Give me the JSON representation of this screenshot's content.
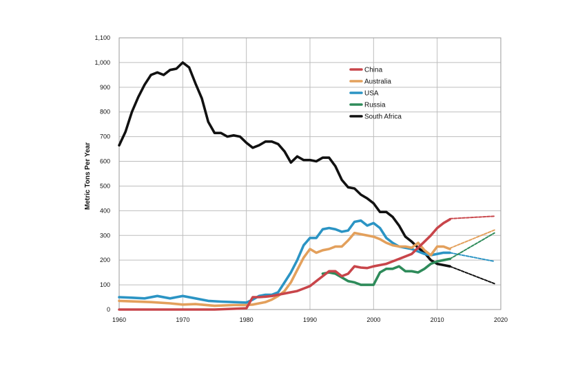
{
  "chart_data": {
    "type": "line",
    "title": "",
    "xlabel": "",
    "ylabel": "Metric Tons Per Year",
    "xlim": [
      1960,
      2020
    ],
    "ylim": [
      0,
      1100
    ],
    "x_ticks": [
      1960,
      1970,
      1980,
      1990,
      2000,
      2010,
      2020
    ],
    "y_ticks": [
      0,
      100,
      200,
      300,
      400,
      500,
      600,
      700,
      800,
      900,
      1000,
      1100
    ],
    "y_tick_labels": [
      "0",
      "100",
      "200",
      "300",
      "400",
      "500",
      "600",
      "700",
      "800",
      "900",
      "1,000",
      "1,100"
    ],
    "grid": "vertical and horizontal",
    "legend_position": "top-right",
    "series": [
      {
        "name": "China",
        "color": "#c8454a",
        "x": [
          1960,
          1965,
          1970,
          1975,
          1980,
          1981,
          1982,
          1983,
          1984,
          1985,
          1986,
          1987,
          1988,
          1989,
          1990,
          1991,
          1992,
          1993,
          1994,
          1995,
          1996,
          1997,
          1998,
          1999,
          2000,
          2001,
          2002,
          2003,
          2004,
          2005,
          2006,
          2007,
          2008,
          2009,
          2010,
          2011,
          2012
        ],
        "y": [
          0,
          0,
          0,
          0,
          5,
          50,
          50,
          52,
          55,
          60,
          65,
          70,
          75,
          85,
          95,
          115,
          135,
          155,
          155,
          135,
          145,
          175,
          170,
          168,
          175,
          180,
          185,
          195,
          205,
          215,
          225,
          250,
          275,
          300,
          330,
          350,
          365
        ],
        "projection": {
          "x": [
            2012,
            2019
          ],
          "y": [
            368,
            378
          ]
        }
      },
      {
        "name": "Australia",
        "color": "#e3a05c",
        "x": [
          1960,
          1965,
          1968,
          1970,
          1972,
          1975,
          1978,
          1980,
          1981,
          1982,
          1983,
          1984,
          1985,
          1986,
          1987,
          1988,
          1989,
          1990,
          1991,
          1992,
          1993,
          1994,
          1995,
          1996,
          1997,
          1998,
          1999,
          2000,
          2001,
          2002,
          2003,
          2004,
          2005,
          2006,
          2007,
          2008,
          2009,
          2010,
          2011,
          2012
        ],
        "y": [
          35,
          30,
          25,
          20,
          22,
          15,
          18,
          18,
          20,
          25,
          30,
          40,
          55,
          75,
          110,
          160,
          210,
          245,
          230,
          240,
          245,
          255,
          255,
          280,
          310,
          305,
          300,
          295,
          285,
          270,
          260,
          255,
          255,
          250,
          270,
          240,
          220,
          255,
          255,
          245
        ],
        "projection": {
          "x": [
            2012,
            2019
          ],
          "y": [
            248,
            322
          ]
        }
      },
      {
        "name": "USA",
        "color": "#2b94c4",
        "x": [
          1960,
          1962,
          1964,
          1966,
          1968,
          1970,
          1972,
          1974,
          1976,
          1978,
          1980,
          1981,
          1982,
          1983,
          1984,
          1985,
          1986,
          1987,
          1988,
          1989,
          1990,
          1991,
          1992,
          1993,
          1994,
          1995,
          1996,
          1997,
          1998,
          1999,
          2000,
          2001,
          2002,
          2003,
          2004,
          2005,
          2006,
          2007,
          2008,
          2009,
          2010,
          2011,
          2012
        ],
        "y": [
          50,
          48,
          45,
          55,
          45,
          55,
          45,
          35,
          32,
          30,
          28,
          40,
          55,
          60,
          60,
          70,
          110,
          150,
          200,
          260,
          290,
          290,
          325,
          330,
          325,
          315,
          320,
          355,
          360,
          340,
          350,
          330,
          290,
          270,
          255,
          250,
          245,
          235,
          225,
          220,
          225,
          230,
          230
        ],
        "projection": {
          "x": [
            2012,
            2019
          ],
          "y": [
            230,
            195
          ]
        }
      },
      {
        "name": "Russia",
        "color": "#2e8b5a",
        "x": [
          1992,
          1993,
          1994,
          1995,
          1996,
          1997,
          1998,
          1999,
          2000,
          2001,
          2002,
          2003,
          2004,
          2005,
          2006,
          2007,
          2008,
          2009,
          2010,
          2011,
          2012
        ],
        "y": [
          145,
          150,
          145,
          130,
          115,
          110,
          100,
          100,
          100,
          150,
          165,
          165,
          175,
          155,
          155,
          150,
          165,
          185,
          195,
          200,
          205
        ],
        "projection": {
          "x": [
            2012,
            2019
          ],
          "y": [
            205,
            310
          ]
        }
      },
      {
        "name": "South Africa",
        "color": "#111111",
        "x": [
          1960,
          1961,
          1962,
          1963,
          1964,
          1965,
          1966,
          1967,
          1968,
          1969,
          1970,
          1971,
          1972,
          1973,
          1974,
          1975,
          1976,
          1977,
          1978,
          1979,
          1980,
          1981,
          1982,
          1983,
          1984,
          1985,
          1986,
          1987,
          1988,
          1989,
          1990,
          1991,
          1992,
          1993,
          1994,
          1995,
          1996,
          1997,
          1998,
          1999,
          2000,
          2001,
          2002,
          2003,
          2004,
          2005,
          2006,
          2007,
          2008,
          2009,
          2010,
          2011,
          2012
        ],
        "y": [
          665,
          720,
          800,
          860,
          910,
          950,
          960,
          950,
          970,
          975,
          1000,
          980,
          915,
          855,
          760,
          715,
          715,
          700,
          705,
          700,
          675,
          655,
          665,
          680,
          680,
          670,
          640,
          595,
          620,
          605,
          605,
          600,
          615,
          615,
          580,
          525,
          495,
          490,
          465,
          450,
          430,
          395,
          395,
          375,
          340,
          295,
          275,
          250,
          230,
          200,
          185,
          180,
          175
        ],
        "projection": {
          "x": [
            2012,
            2019
          ],
          "y": [
            175,
            105
          ]
        }
      }
    ]
  }
}
